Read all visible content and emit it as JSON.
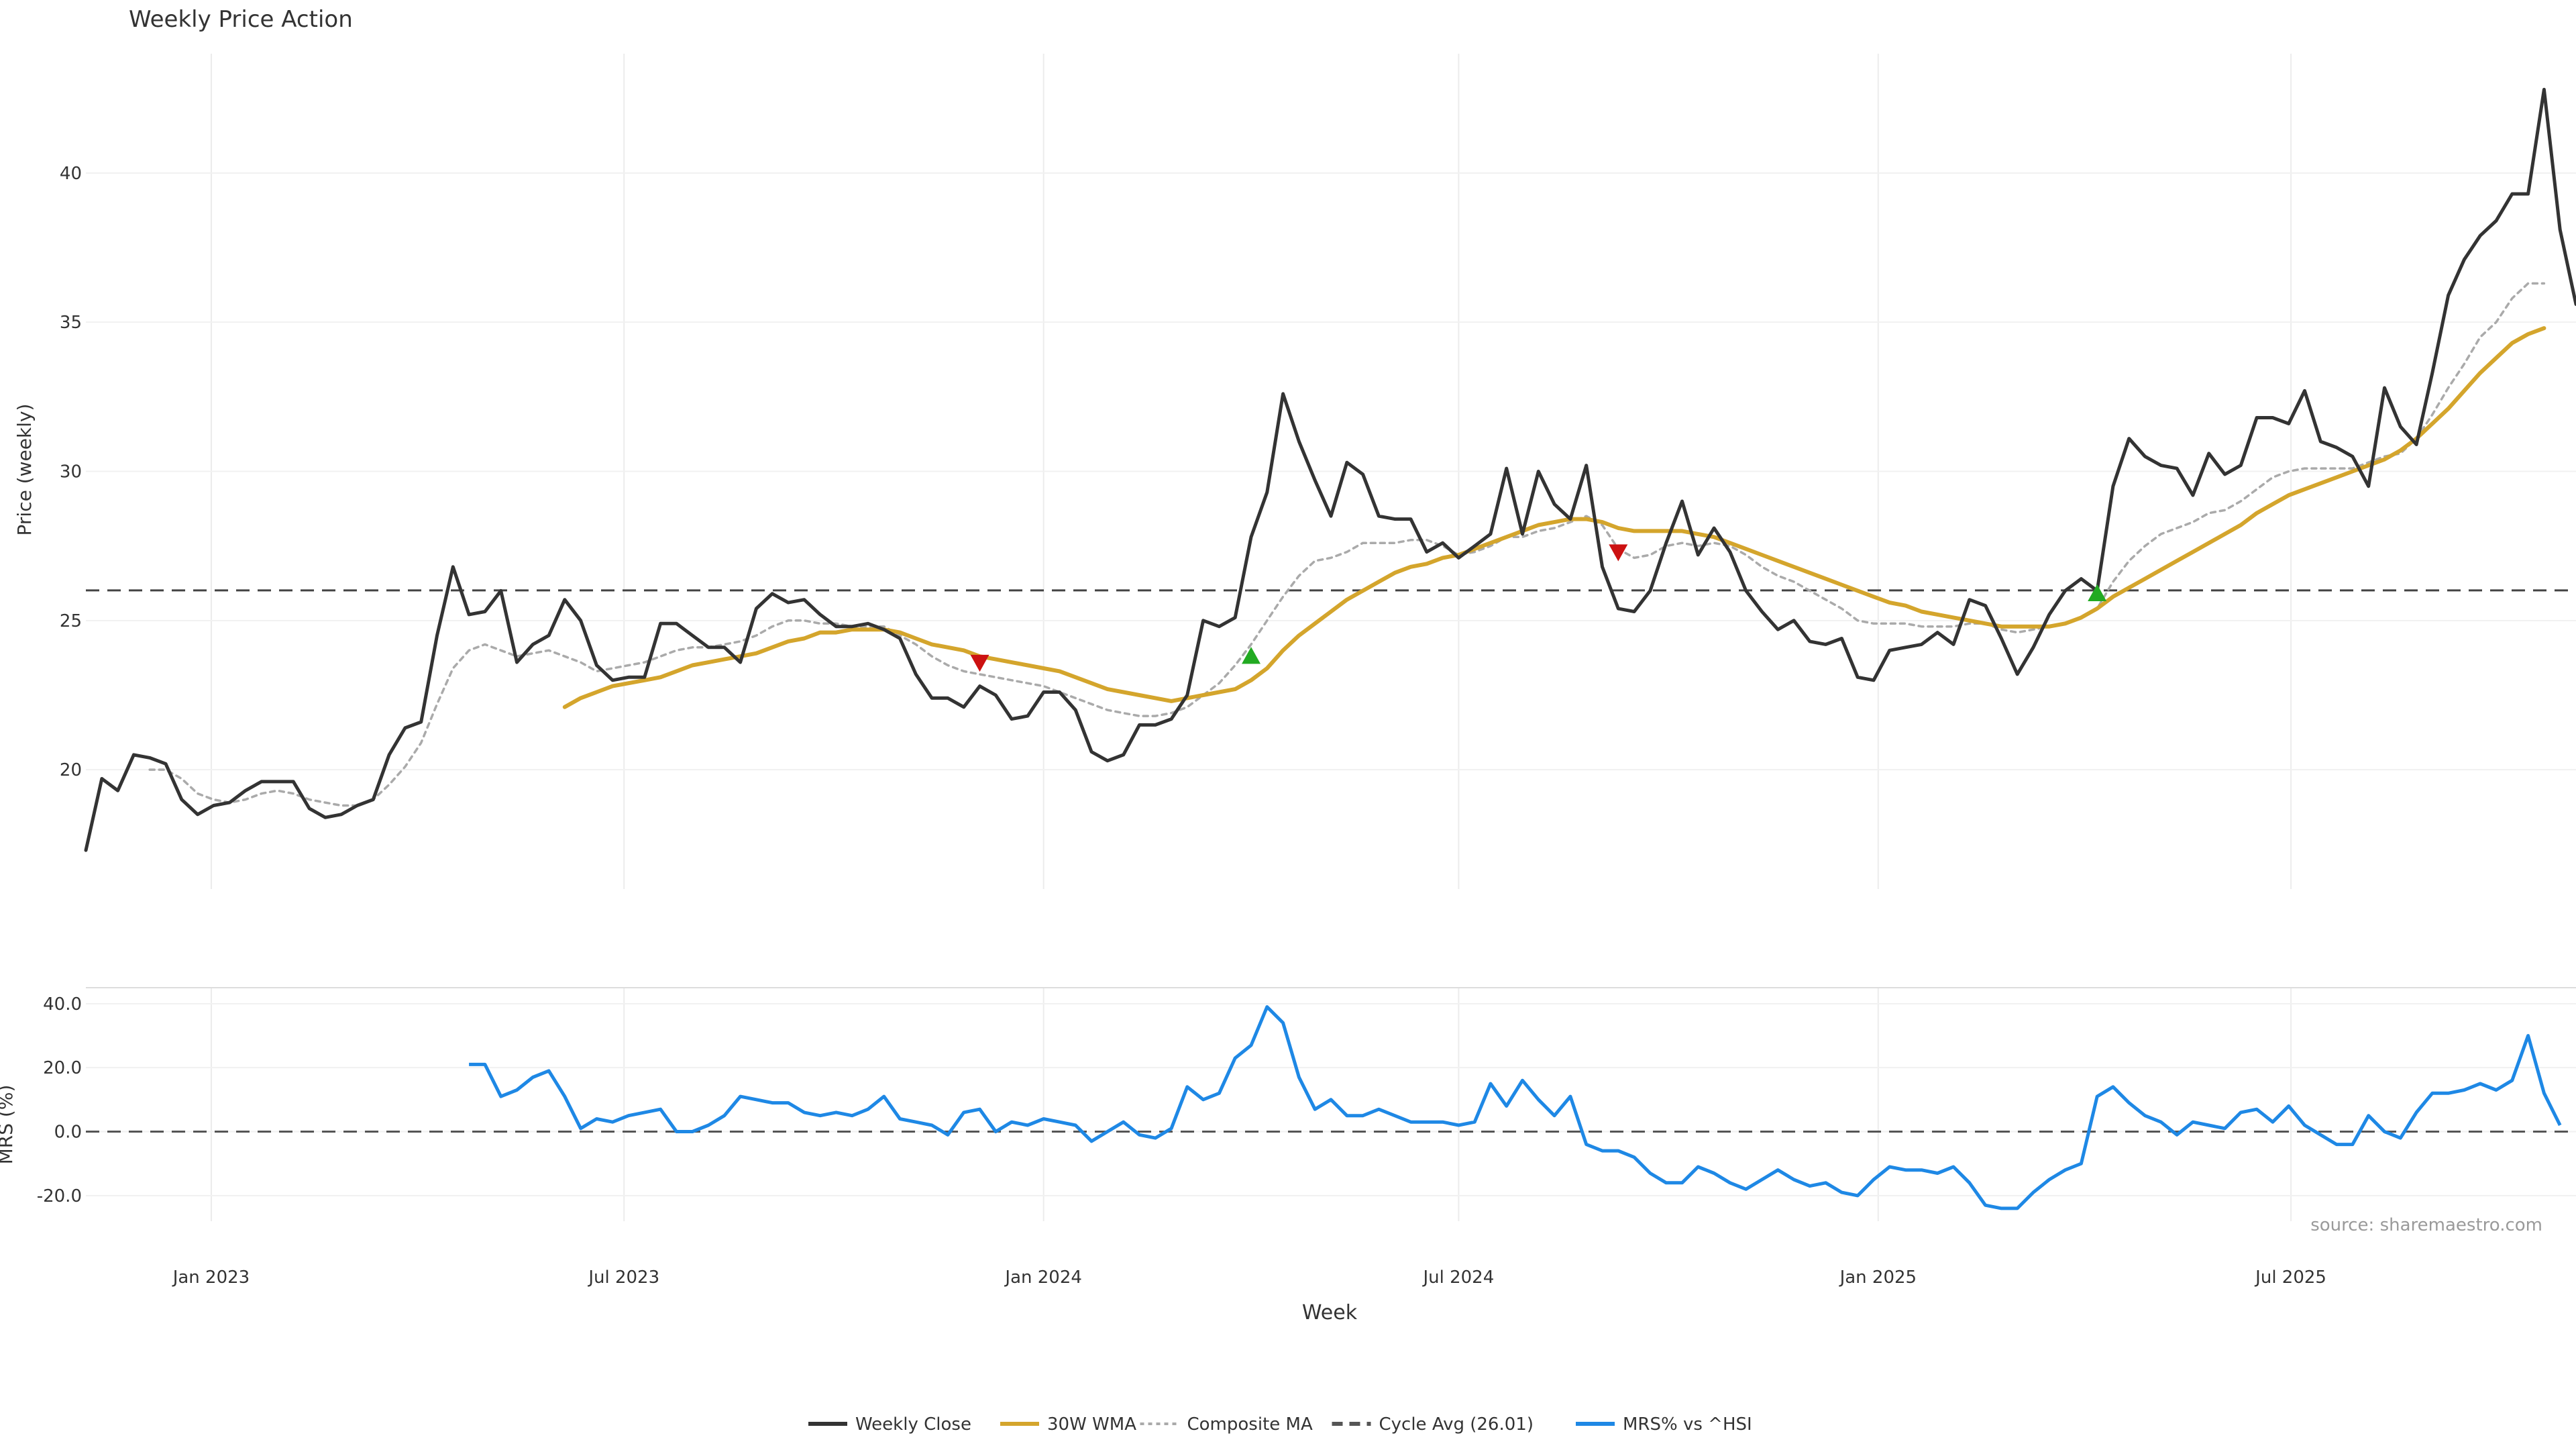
{
  "chart_data": [
    {
      "panel": "price",
      "type": "line",
      "title": "Weekly Price Action",
      "ylabel": "Price (weekly)",
      "ylim": [
        16,
        44
      ],
      "yticks": [
        20,
        25,
        30,
        35,
        40
      ],
      "grid": true,
      "start_date": "2022-11-07",
      "x_interval": "week",
      "reference_line": {
        "name": "Cycle Avg (26.01)",
        "value": 26.01
      },
      "series": [
        {
          "name": "Weekly Close",
          "color": "#333333",
          "values": [
            17.3,
            19.7,
            19.3,
            20.5,
            20.4,
            20.2,
            19.0,
            18.5,
            18.8,
            18.9,
            19.3,
            19.6,
            19.6,
            19.6,
            18.7,
            18.4,
            18.5,
            18.8,
            19.0,
            20.5,
            21.4,
            21.6,
            24.5,
            26.8,
            25.2,
            25.3,
            26.0,
            23.6,
            24.2,
            24.5,
            25.7,
            25.0,
            23.5,
            23.0,
            23.1,
            23.1,
            24.9,
            24.9,
            24.5,
            24.1,
            24.1,
            23.6,
            25.4,
            25.9,
            25.6,
            25.7,
            25.2,
            24.8,
            24.8,
            24.9,
            24.7,
            24.4,
            23.2,
            22.4,
            22.4,
            22.1,
            22.8,
            22.5,
            21.7,
            21.8,
            22.6,
            22.6,
            22.0,
            20.6,
            20.3,
            20.5,
            21.5,
            21.5,
            21.7,
            22.5,
            25.0,
            24.8,
            25.1,
            27.8,
            29.3,
            32.6,
            31.0,
            29.7,
            28.5,
            30.3,
            29.9,
            28.5,
            28.4,
            28.4,
            27.3,
            27.6,
            27.1,
            27.5,
            27.9,
            30.1,
            27.9,
            30.0,
            28.9,
            28.4,
            30.2,
            26.8,
            25.4,
            25.3,
            26.0,
            27.6,
            29.0,
            27.2,
            28.1,
            27.3,
            26.0,
            25.3,
            24.7,
            25.0,
            24.3,
            24.2,
            24.4,
            23.1,
            23.0,
            24.0,
            24.1,
            24.2,
            24.6,
            24.2,
            25.7,
            25.5,
            24.4,
            23.2,
            24.1,
            25.2,
            26.0,
            26.4,
            26.0,
            29.5,
            31.1,
            30.5,
            30.2,
            30.1,
            29.2,
            30.6,
            29.9,
            30.2,
            31.8,
            31.8,
            31.6,
            32.7,
            31.0,
            30.8,
            30.5,
            29.5,
            32.8,
            31.5,
            30.9,
            33.3,
            35.9,
            37.1,
            37.9,
            38.4,
            39.3,
            39.3,
            42.8,
            38.1,
            35.6
          ]
        },
        {
          "name": "30W WMA",
          "color": "#d4a52c",
          "values": [
            null,
            null,
            null,
            null,
            null,
            null,
            null,
            null,
            null,
            null,
            null,
            null,
            null,
            null,
            null,
            null,
            null,
            null,
            null,
            null,
            null,
            null,
            null,
            null,
            null,
            null,
            null,
            null,
            null,
            null,
            22.1,
            22.4,
            22.6,
            22.8,
            22.9,
            23.0,
            23.1,
            23.3,
            23.5,
            23.6,
            23.7,
            23.8,
            23.9,
            24.1,
            24.3,
            24.4,
            24.6,
            24.6,
            24.7,
            24.7,
            24.7,
            24.6,
            24.4,
            24.2,
            24.1,
            24.0,
            23.8,
            23.7,
            23.6,
            23.5,
            23.4,
            23.3,
            23.1,
            22.9,
            22.7,
            22.6,
            22.5,
            22.4,
            22.3,
            22.4,
            22.5,
            22.6,
            22.7,
            23.0,
            23.4,
            24.0,
            24.5,
            24.9,
            25.3,
            25.7,
            26.0,
            26.3,
            26.6,
            26.8,
            26.9,
            27.1,
            27.2,
            27.4,
            27.6,
            27.8,
            28.0,
            28.2,
            28.3,
            28.4,
            28.4,
            28.3,
            28.1,
            28.0,
            28.0,
            28.0,
            28.0,
            27.9,
            27.8,
            27.6,
            27.4,
            27.2,
            27.0,
            26.8,
            26.6,
            26.4,
            26.2,
            26.0,
            25.8,
            25.6,
            25.5,
            25.3,
            25.2,
            25.1,
            25.0,
            24.9,
            24.8,
            24.8,
            24.8,
            24.8,
            24.9,
            25.1,
            25.4,
            25.8,
            26.1,
            26.4,
            26.7,
            27.0,
            27.3,
            27.6,
            27.9,
            28.2,
            28.6,
            28.9,
            29.2,
            29.4,
            29.6,
            29.8,
            30.0,
            30.2,
            30.4,
            30.7,
            31.1,
            31.6,
            32.1,
            32.7,
            33.3,
            33.8,
            34.3,
            34.6,
            34.8
          ]
        },
        {
          "name": "Composite MA",
          "color": "#aaaaaa",
          "values": [
            null,
            null,
            null,
            null,
            20.0,
            20.0,
            19.7,
            19.2,
            19.0,
            18.9,
            19.0,
            19.2,
            19.3,
            19.2,
            19.0,
            18.9,
            18.8,
            18.8,
            19.0,
            19.5,
            20.1,
            20.9,
            22.2,
            23.4,
            24.0,
            24.2,
            24.0,
            23.8,
            23.9,
            24.0,
            23.8,
            23.6,
            23.3,
            23.4,
            23.5,
            23.6,
            23.8,
            24.0,
            24.1,
            24.1,
            24.2,
            24.3,
            24.5,
            24.8,
            25.0,
            25.0,
            24.9,
            24.9,
            24.8,
            24.8,
            24.8,
            24.5,
            24.2,
            23.8,
            23.5,
            23.3,
            23.2,
            23.1,
            23.0,
            22.9,
            22.8,
            22.6,
            22.4,
            22.2,
            22.0,
            21.9,
            21.8,
            21.8,
            21.9,
            22.1,
            22.5,
            22.9,
            23.5,
            24.2,
            25.0,
            25.8,
            26.5,
            27.0,
            27.1,
            27.3,
            27.6,
            27.6,
            27.6,
            27.7,
            27.7,
            27.5,
            27.2,
            27.3,
            27.5,
            27.8,
            27.8,
            28.0,
            28.1,
            28.3,
            28.5,
            28.2,
            27.4,
            27.1,
            27.2,
            27.5,
            27.6,
            27.5,
            27.6,
            27.5,
            27.2,
            26.8,
            26.5,
            26.3,
            26.0,
            25.7,
            25.4,
            25.0,
            24.9,
            24.9,
            24.9,
            24.8,
            24.8,
            24.8,
            24.9,
            24.9,
            24.7,
            24.6,
            24.7,
            24.8,
            24.9,
            25.1,
            25.4,
            26.3,
            27.0,
            27.5,
            27.9,
            28.1,
            28.3,
            28.6,
            28.7,
            29.0,
            29.4,
            29.8,
            30.0,
            30.1,
            30.1,
            30.1,
            30.1,
            30.3,
            30.5,
            30.6,
            31.1,
            31.9,
            32.8,
            33.6,
            34.5,
            35.0,
            35.8,
            36.3,
            36.3
          ]
        }
      ],
      "markers": [
        {
          "type": "sell",
          "color": "#cc1111",
          "index": 56,
          "value": 23.6
        },
        {
          "type": "buy",
          "color": "#22aa22",
          "index": 73,
          "value": 23.8
        },
        {
          "type": "sell",
          "color": "#cc1111",
          "index": 96,
          "value": 27.3
        },
        {
          "type": "buy",
          "color": "#22aa22",
          "index": 126,
          "value": 25.9
        }
      ]
    },
    {
      "panel": "mrs",
      "type": "line",
      "ylabel": "MRS (%)",
      "xlabel": "Week",
      "ylim": [
        -28,
        45
      ],
      "yticks": [
        40.0,
        20.0,
        0.0,
        -20.0
      ],
      "ytick_labels": [
        "40.0",
        "20.0",
        "0.0",
        "-20.0"
      ],
      "grid": true,
      "zero_line": 0,
      "annotation": "source: sharemaestro.com",
      "x_tick_labels": [
        "Jan 2023",
        "Jul 2023",
        "Jan 2024",
        "Jul 2024",
        "Jan 2025",
        "Jul 2025"
      ],
      "x_tick_dates": [
        "2023-01-01",
        "2023-07-01",
        "2024-01-01",
        "2024-07-01",
        "2025-01-01",
        "2025-07-01"
      ],
      "series": [
        {
          "name": "MRS% vs ^HSI",
          "color": "#1e88e5",
          "values": [
            null,
            null,
            null,
            null,
            null,
            null,
            null,
            null,
            null,
            null,
            null,
            null,
            null,
            null,
            null,
            null,
            null,
            null,
            null,
            null,
            null,
            null,
            null,
            null,
            21,
            21,
            11,
            13,
            17,
            19,
            11,
            1,
            4,
            3,
            5,
            6,
            7,
            0,
            0,
            2,
            5,
            11,
            10,
            9,
            9,
            6,
            5,
            6,
            5,
            7,
            11,
            4,
            3,
            2,
            -1,
            6,
            7,
            0,
            3,
            2,
            4,
            3,
            2,
            -3,
            0,
            3,
            -1,
            -2,
            1,
            14,
            10,
            12,
            23,
            27,
            39,
            34,
            17,
            7,
            10,
            5,
            5,
            7,
            5,
            3,
            3,
            3,
            2,
            3,
            15,
            8,
            16,
            10,
            5,
            11,
            -4,
            -6,
            -6,
            -8,
            -13,
            -16,
            -16,
            -11,
            -13,
            -16,
            -18,
            -15,
            -12,
            -15,
            -17,
            -16,
            -19,
            -20,
            -15,
            -11,
            -12,
            -12,
            -13,
            -11,
            -16,
            -23,
            -24,
            -24,
            -19,
            -15,
            -12,
            -10,
            11,
            14,
            9,
            5,
            3,
            -1,
            3,
            2,
            1,
            6,
            7,
            3,
            8,
            2,
            -1,
            -4,
            -4,
            5,
            0,
            -2,
            6,
            12,
            12,
            13,
            15,
            13,
            16,
            30,
            12,
            2
          ]
        }
      ]
    }
  ],
  "legend": {
    "placement": "bottom-center",
    "items": [
      {
        "label": "Weekly Close",
        "style": "solid",
        "color": "#333333"
      },
      {
        "label": "30W WMA",
        "style": "solid",
        "color": "#d4a52c"
      },
      {
        "label": "Composite MA",
        "style": "dotted",
        "color": "#aaaaaa"
      },
      {
        "label": "Cycle Avg (26.01)",
        "style": "dashed",
        "color": "#555555"
      },
      {
        "label": "MRS% vs ^HSI",
        "style": "solid",
        "color": "#1e88e5"
      }
    ]
  }
}
